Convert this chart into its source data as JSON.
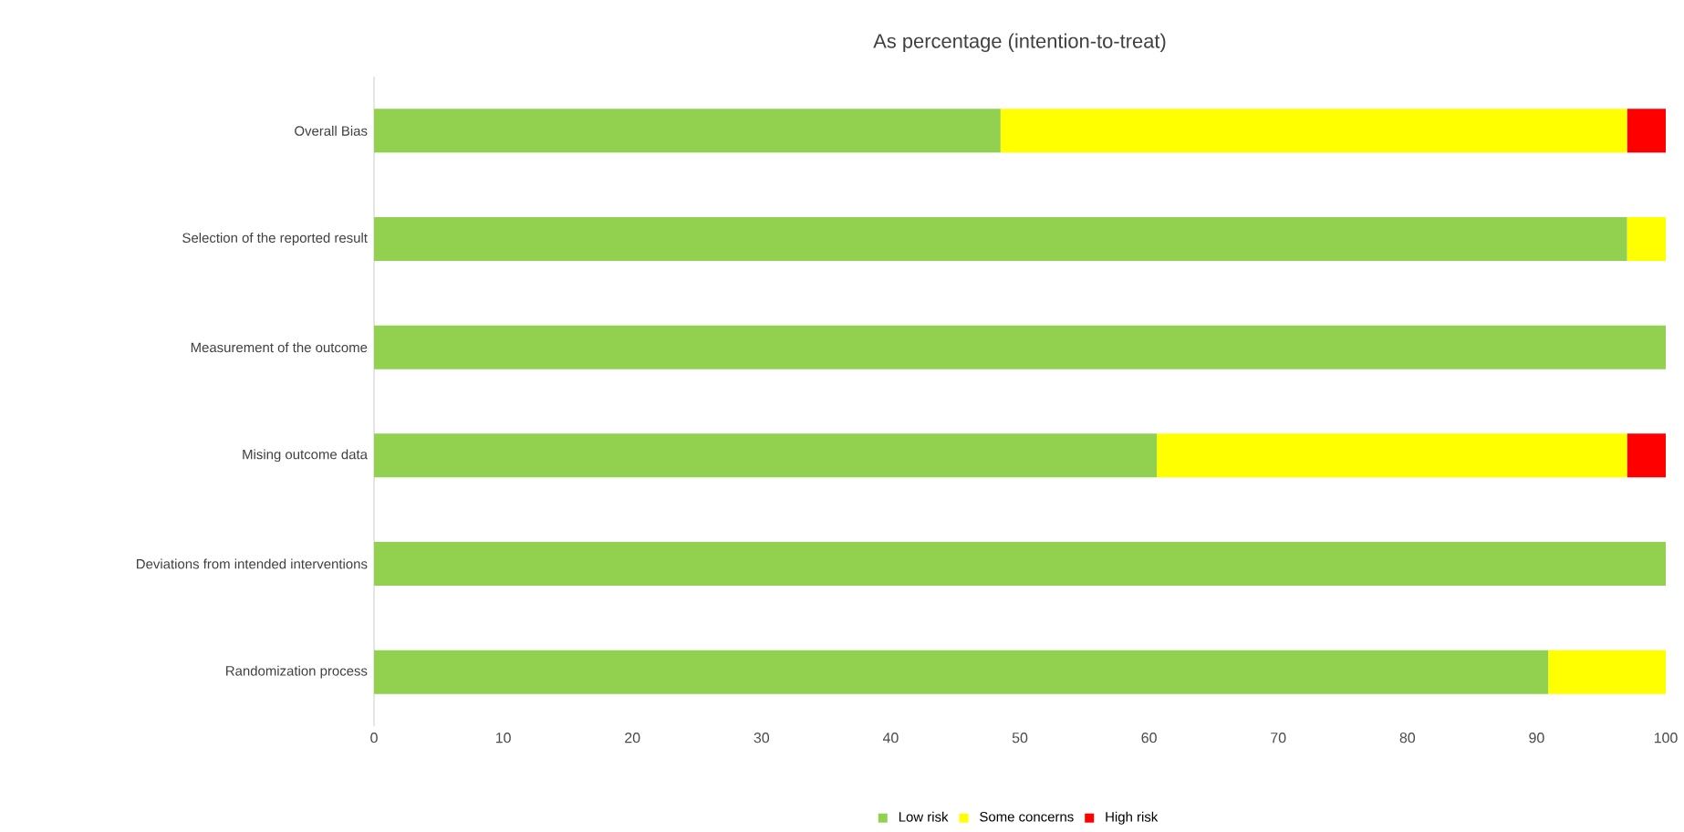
{
  "chart_data": {
    "type": "bar",
    "orientation": "horizontal",
    "stacked": true,
    "title": "As percentage (intention-to-treat)",
    "categories": [
      "Overall Bias",
      "Selection of the reported result",
      "Measurement of the outcome",
      "Mising outcome data",
      "Deviations from intended interventions",
      "Randomization process"
    ],
    "series": [
      {
        "name": "Low risk",
        "color": "#92d050",
        "values": [
          48.5,
          97,
          100,
          60.6,
          100,
          90.9
        ]
      },
      {
        "name": "Some concerns",
        "color": "#ffff00",
        "values": [
          48.5,
          3,
          0,
          36.4,
          0,
          9.1
        ]
      },
      {
        "name": "High risk",
        "color": "#ff0000",
        "values": [
          3,
          0,
          0,
          3,
          0,
          0
        ]
      }
    ],
    "xlim": [
      0,
      100
    ],
    "xticks": [
      0,
      10,
      20,
      30,
      40,
      50,
      60,
      70,
      80,
      90,
      100
    ],
    "legend": "bottom",
    "grid": false
  }
}
